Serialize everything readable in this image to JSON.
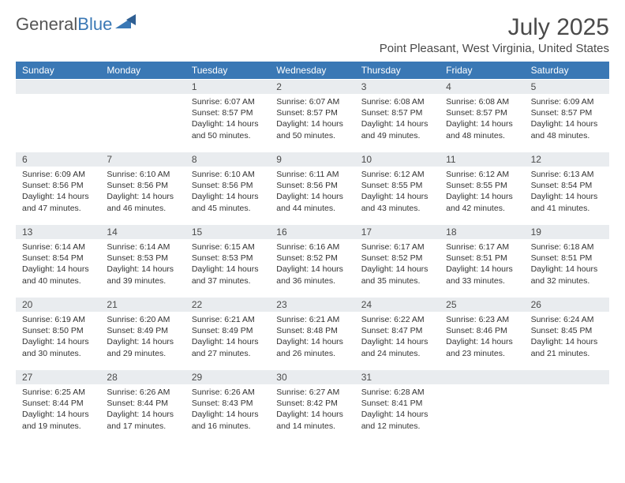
{
  "brand": {
    "first": "General",
    "second": "Blue",
    "mark_color": "#3a78b5"
  },
  "title": "July 2025",
  "location": "Point Pleasant, West Virginia, United States",
  "colors": {
    "header_bg": "#3a78b5",
    "header_text": "#ffffff",
    "daynum_bg": "#e9ecef",
    "body_text": "#333333",
    "title_text": "#4a4a4a"
  },
  "weekdays": [
    "Sunday",
    "Monday",
    "Tuesday",
    "Wednesday",
    "Thursday",
    "Friday",
    "Saturday"
  ],
  "weeks": [
    [
      null,
      null,
      {
        "n": "1",
        "sr": "Sunrise: 6:07 AM",
        "ss": "Sunset: 8:57 PM",
        "dl1": "Daylight: 14 hours",
        "dl2": "and 50 minutes."
      },
      {
        "n": "2",
        "sr": "Sunrise: 6:07 AM",
        "ss": "Sunset: 8:57 PM",
        "dl1": "Daylight: 14 hours",
        "dl2": "and 50 minutes."
      },
      {
        "n": "3",
        "sr": "Sunrise: 6:08 AM",
        "ss": "Sunset: 8:57 PM",
        "dl1": "Daylight: 14 hours",
        "dl2": "and 49 minutes."
      },
      {
        "n": "4",
        "sr": "Sunrise: 6:08 AM",
        "ss": "Sunset: 8:57 PM",
        "dl1": "Daylight: 14 hours",
        "dl2": "and 48 minutes."
      },
      {
        "n": "5",
        "sr": "Sunrise: 6:09 AM",
        "ss": "Sunset: 8:57 PM",
        "dl1": "Daylight: 14 hours",
        "dl2": "and 48 minutes."
      }
    ],
    [
      {
        "n": "6",
        "sr": "Sunrise: 6:09 AM",
        "ss": "Sunset: 8:56 PM",
        "dl1": "Daylight: 14 hours",
        "dl2": "and 47 minutes."
      },
      {
        "n": "7",
        "sr": "Sunrise: 6:10 AM",
        "ss": "Sunset: 8:56 PM",
        "dl1": "Daylight: 14 hours",
        "dl2": "and 46 minutes."
      },
      {
        "n": "8",
        "sr": "Sunrise: 6:10 AM",
        "ss": "Sunset: 8:56 PM",
        "dl1": "Daylight: 14 hours",
        "dl2": "and 45 minutes."
      },
      {
        "n": "9",
        "sr": "Sunrise: 6:11 AM",
        "ss": "Sunset: 8:56 PM",
        "dl1": "Daylight: 14 hours",
        "dl2": "and 44 minutes."
      },
      {
        "n": "10",
        "sr": "Sunrise: 6:12 AM",
        "ss": "Sunset: 8:55 PM",
        "dl1": "Daylight: 14 hours",
        "dl2": "and 43 minutes."
      },
      {
        "n": "11",
        "sr": "Sunrise: 6:12 AM",
        "ss": "Sunset: 8:55 PM",
        "dl1": "Daylight: 14 hours",
        "dl2": "and 42 minutes."
      },
      {
        "n": "12",
        "sr": "Sunrise: 6:13 AM",
        "ss": "Sunset: 8:54 PM",
        "dl1": "Daylight: 14 hours",
        "dl2": "and 41 minutes."
      }
    ],
    [
      {
        "n": "13",
        "sr": "Sunrise: 6:14 AM",
        "ss": "Sunset: 8:54 PM",
        "dl1": "Daylight: 14 hours",
        "dl2": "and 40 minutes."
      },
      {
        "n": "14",
        "sr": "Sunrise: 6:14 AM",
        "ss": "Sunset: 8:53 PM",
        "dl1": "Daylight: 14 hours",
        "dl2": "and 39 minutes."
      },
      {
        "n": "15",
        "sr": "Sunrise: 6:15 AM",
        "ss": "Sunset: 8:53 PM",
        "dl1": "Daylight: 14 hours",
        "dl2": "and 37 minutes."
      },
      {
        "n": "16",
        "sr": "Sunrise: 6:16 AM",
        "ss": "Sunset: 8:52 PM",
        "dl1": "Daylight: 14 hours",
        "dl2": "and 36 minutes."
      },
      {
        "n": "17",
        "sr": "Sunrise: 6:17 AM",
        "ss": "Sunset: 8:52 PM",
        "dl1": "Daylight: 14 hours",
        "dl2": "and 35 minutes."
      },
      {
        "n": "18",
        "sr": "Sunrise: 6:17 AM",
        "ss": "Sunset: 8:51 PM",
        "dl1": "Daylight: 14 hours",
        "dl2": "and 33 minutes."
      },
      {
        "n": "19",
        "sr": "Sunrise: 6:18 AM",
        "ss": "Sunset: 8:51 PM",
        "dl1": "Daylight: 14 hours",
        "dl2": "and 32 minutes."
      }
    ],
    [
      {
        "n": "20",
        "sr": "Sunrise: 6:19 AM",
        "ss": "Sunset: 8:50 PM",
        "dl1": "Daylight: 14 hours",
        "dl2": "and 30 minutes."
      },
      {
        "n": "21",
        "sr": "Sunrise: 6:20 AM",
        "ss": "Sunset: 8:49 PM",
        "dl1": "Daylight: 14 hours",
        "dl2": "and 29 minutes."
      },
      {
        "n": "22",
        "sr": "Sunrise: 6:21 AM",
        "ss": "Sunset: 8:49 PM",
        "dl1": "Daylight: 14 hours",
        "dl2": "and 27 minutes."
      },
      {
        "n": "23",
        "sr": "Sunrise: 6:21 AM",
        "ss": "Sunset: 8:48 PM",
        "dl1": "Daylight: 14 hours",
        "dl2": "and 26 minutes."
      },
      {
        "n": "24",
        "sr": "Sunrise: 6:22 AM",
        "ss": "Sunset: 8:47 PM",
        "dl1": "Daylight: 14 hours",
        "dl2": "and 24 minutes."
      },
      {
        "n": "25",
        "sr": "Sunrise: 6:23 AM",
        "ss": "Sunset: 8:46 PM",
        "dl1": "Daylight: 14 hours",
        "dl2": "and 23 minutes."
      },
      {
        "n": "26",
        "sr": "Sunrise: 6:24 AM",
        "ss": "Sunset: 8:45 PM",
        "dl1": "Daylight: 14 hours",
        "dl2": "and 21 minutes."
      }
    ],
    [
      {
        "n": "27",
        "sr": "Sunrise: 6:25 AM",
        "ss": "Sunset: 8:44 PM",
        "dl1": "Daylight: 14 hours",
        "dl2": "and 19 minutes."
      },
      {
        "n": "28",
        "sr": "Sunrise: 6:26 AM",
        "ss": "Sunset: 8:44 PM",
        "dl1": "Daylight: 14 hours",
        "dl2": "and 17 minutes."
      },
      {
        "n": "29",
        "sr": "Sunrise: 6:26 AM",
        "ss": "Sunset: 8:43 PM",
        "dl1": "Daylight: 14 hours",
        "dl2": "and 16 minutes."
      },
      {
        "n": "30",
        "sr": "Sunrise: 6:27 AM",
        "ss": "Sunset: 8:42 PM",
        "dl1": "Daylight: 14 hours",
        "dl2": "and 14 minutes."
      },
      {
        "n": "31",
        "sr": "Sunrise: 6:28 AM",
        "ss": "Sunset: 8:41 PM",
        "dl1": "Daylight: 14 hours",
        "dl2": "and 12 minutes."
      },
      null,
      null
    ]
  ]
}
